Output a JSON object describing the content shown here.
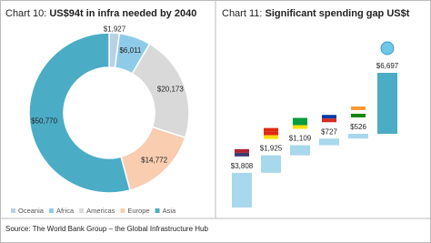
{
  "chart_data": [
    {
      "type": "pie",
      "label": "Chart 10:",
      "title": "US$94t in infra needed by 2040",
      "categories": [
        "Oceania",
        "Africa",
        "Americas",
        "Europe",
        "Asia"
      ],
      "values": [
        1927,
        6011,
        20173,
        14772,
        50770
      ],
      "value_labels": [
        "$1,927",
        "$6,011",
        "$20,173",
        "$14,772",
        "$50,770"
      ],
      "colors": [
        "#b7d2e4",
        "#8ecbe8",
        "#d9d9d9",
        "#f8cdb0",
        "#4bacc6"
      ],
      "donut": true,
      "legend": "bottom"
    },
    {
      "type": "waterfall",
      "label": "Chart 11:",
      "title": "Significant spending gap US$t",
      "values": [
        3808,
        1925,
        1109,
        727,
        526,
        6697
      ],
      "value_labels": [
        "$3,808",
        "$1,925",
        "$1,109",
        "$727",
        "$526",
        "$6,697"
      ],
      "colors": [
        "#a8d8ec",
        "#a8d8ec",
        "#a8d8ec",
        "#a8d8ec",
        "#a8d8ec",
        "#4bacc6"
      ]
    }
  ],
  "source": "Source: The World Bank Group – the Global Infrastructure Hub"
}
